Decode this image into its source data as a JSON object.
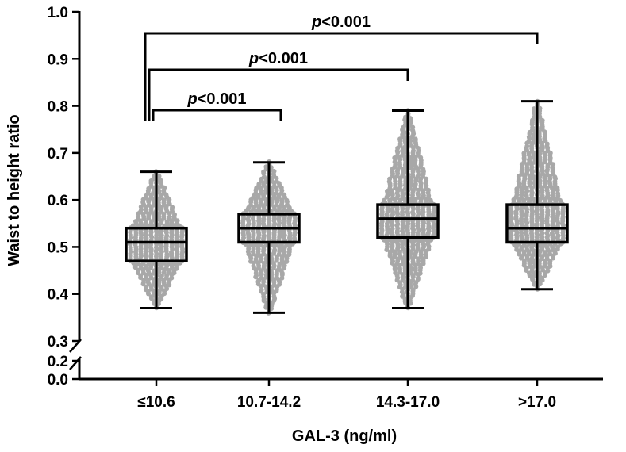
{
  "chart_data": {
    "type": "box",
    "xlabel": "GAL-3 (ng/ml)",
    "ylabel": "Waist to height ratio",
    "ylim": [
      0.0,
      1.0
    ],
    "axis_break": {
      "lower_segment": [
        0.0,
        0.2
      ],
      "upper_segment": [
        0.3,
        1.0
      ]
    },
    "y_ticks_upper": [
      "0.3",
      "0.4",
      "0.5",
      "0.6",
      "0.7",
      "0.8",
      "0.9",
      "1.0"
    ],
    "y_ticks_lower": [
      "0.0",
      "0.2"
    ],
    "categories": [
      "≤10.6",
      "10.7-14.2",
      "14.3-17.0",
      ">17.0"
    ],
    "boxes": [
      {
        "category": "≤10.6",
        "min": 0.37,
        "q1": 0.47,
        "median": 0.51,
        "q3": 0.54,
        "max": 0.66
      },
      {
        "category": "10.7-14.2",
        "min": 0.36,
        "q1": 0.51,
        "median": 0.54,
        "q3": 0.57,
        "max": 0.68
      },
      {
        "category": "14.3-17.0",
        "min": 0.37,
        "q1": 0.52,
        "median": 0.56,
        "q3": 0.59,
        "max": 0.79
      },
      {
        "category": ">17.0",
        "min": 0.41,
        "q1": 0.51,
        "median": 0.54,
        "q3": 0.59,
        "max": 0.81
      }
    ],
    "points_shown": true,
    "point_color": "#a8a8a8",
    "comparisons": [
      {
        "from": "≤10.6",
        "to": "10.7-14.2",
        "label_italic": "p",
        "label_rest": "<0.001"
      },
      {
        "from": "≤10.6",
        "to": "14.3-17.0",
        "label_italic": "p",
        "label_rest": "<0.001"
      },
      {
        "from": "≤10.6",
        "to": ">17.0",
        "label_italic": "p",
        "label_rest": "<0.001"
      }
    ]
  }
}
